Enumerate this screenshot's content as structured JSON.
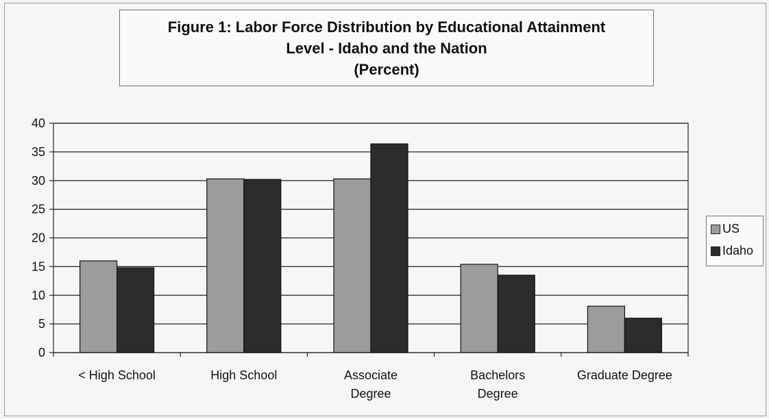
{
  "chart_data": {
    "type": "bar",
    "title_lines": [
      "Figure 1:  Labor Force Distribution by Educational Attainment",
      "Level - Idaho and the Nation",
      "(Percent)"
    ],
    "categories": [
      [
        "< High School"
      ],
      [
        "High School"
      ],
      [
        "Associate",
        "Degree"
      ],
      [
        "Bachelors",
        "Degree"
      ],
      [
        "Graduate Degree"
      ]
    ],
    "series": [
      {
        "name": "US",
        "values": [
          16.0,
          30.3,
          30.3,
          15.4,
          8.1
        ],
        "color": "#9c9c9c"
      },
      {
        "name": "Idaho",
        "values": [
          14.8,
          30.2,
          36.4,
          13.5,
          6.0
        ],
        "color": "#2c2c2c"
      }
    ],
    "ylim": [
      0,
      40
    ],
    "yticks": [
      0,
      5,
      10,
      15,
      20,
      25,
      30,
      35,
      40
    ],
    "grid": true,
    "legend_position": "right",
    "xlabel": "",
    "ylabel": ""
  }
}
